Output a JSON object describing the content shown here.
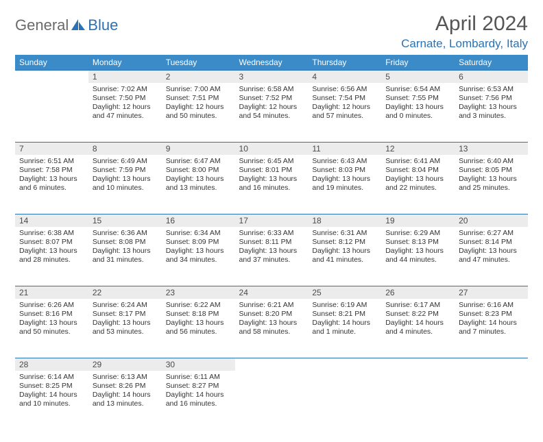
{
  "logo": {
    "part1": "General",
    "part2": "Blue"
  },
  "title": "April 2024",
  "subtitle": "Carnate, Lombardy, Italy",
  "colors": {
    "header_bg": "#3b8bc9",
    "accent": "#2a72b5",
    "daynum_bg": "#ececec",
    "text": "#333333",
    "title_color": "#555555"
  },
  "day_headers": [
    "Sunday",
    "Monday",
    "Tuesday",
    "Wednesday",
    "Thursday",
    "Friday",
    "Saturday"
  ],
  "weeks": [
    {
      "nums": [
        "",
        "1",
        "2",
        "3",
        "4",
        "5",
        "6"
      ],
      "cells": [
        null,
        {
          "sr": "Sunrise: 7:02 AM",
          "ss": "Sunset: 7:50 PM",
          "dl": "Daylight: 12 hours and 47 minutes."
        },
        {
          "sr": "Sunrise: 7:00 AM",
          "ss": "Sunset: 7:51 PM",
          "dl": "Daylight: 12 hours and 50 minutes."
        },
        {
          "sr": "Sunrise: 6:58 AM",
          "ss": "Sunset: 7:52 PM",
          "dl": "Daylight: 12 hours and 54 minutes."
        },
        {
          "sr": "Sunrise: 6:56 AM",
          "ss": "Sunset: 7:54 PM",
          "dl": "Daylight: 12 hours and 57 minutes."
        },
        {
          "sr": "Sunrise: 6:54 AM",
          "ss": "Sunset: 7:55 PM",
          "dl": "Daylight: 13 hours and 0 minutes."
        },
        {
          "sr": "Sunrise: 6:53 AM",
          "ss": "Sunset: 7:56 PM",
          "dl": "Daylight: 13 hours and 3 minutes."
        }
      ]
    },
    {
      "nums": [
        "7",
        "8",
        "9",
        "10",
        "11",
        "12",
        "13"
      ],
      "cells": [
        {
          "sr": "Sunrise: 6:51 AM",
          "ss": "Sunset: 7:58 PM",
          "dl": "Daylight: 13 hours and 6 minutes."
        },
        {
          "sr": "Sunrise: 6:49 AM",
          "ss": "Sunset: 7:59 PM",
          "dl": "Daylight: 13 hours and 10 minutes."
        },
        {
          "sr": "Sunrise: 6:47 AM",
          "ss": "Sunset: 8:00 PM",
          "dl": "Daylight: 13 hours and 13 minutes."
        },
        {
          "sr": "Sunrise: 6:45 AM",
          "ss": "Sunset: 8:01 PM",
          "dl": "Daylight: 13 hours and 16 minutes."
        },
        {
          "sr": "Sunrise: 6:43 AM",
          "ss": "Sunset: 8:03 PM",
          "dl": "Daylight: 13 hours and 19 minutes."
        },
        {
          "sr": "Sunrise: 6:41 AM",
          "ss": "Sunset: 8:04 PM",
          "dl": "Daylight: 13 hours and 22 minutes."
        },
        {
          "sr": "Sunrise: 6:40 AM",
          "ss": "Sunset: 8:05 PM",
          "dl": "Daylight: 13 hours and 25 minutes."
        }
      ]
    },
    {
      "nums": [
        "14",
        "15",
        "16",
        "17",
        "18",
        "19",
        "20"
      ],
      "cells": [
        {
          "sr": "Sunrise: 6:38 AM",
          "ss": "Sunset: 8:07 PM",
          "dl": "Daylight: 13 hours and 28 minutes."
        },
        {
          "sr": "Sunrise: 6:36 AM",
          "ss": "Sunset: 8:08 PM",
          "dl": "Daylight: 13 hours and 31 minutes."
        },
        {
          "sr": "Sunrise: 6:34 AM",
          "ss": "Sunset: 8:09 PM",
          "dl": "Daylight: 13 hours and 34 minutes."
        },
        {
          "sr": "Sunrise: 6:33 AM",
          "ss": "Sunset: 8:11 PM",
          "dl": "Daylight: 13 hours and 37 minutes."
        },
        {
          "sr": "Sunrise: 6:31 AM",
          "ss": "Sunset: 8:12 PM",
          "dl": "Daylight: 13 hours and 41 minutes."
        },
        {
          "sr": "Sunrise: 6:29 AM",
          "ss": "Sunset: 8:13 PM",
          "dl": "Daylight: 13 hours and 44 minutes."
        },
        {
          "sr": "Sunrise: 6:27 AM",
          "ss": "Sunset: 8:14 PM",
          "dl": "Daylight: 13 hours and 47 minutes."
        }
      ]
    },
    {
      "nums": [
        "21",
        "22",
        "23",
        "24",
        "25",
        "26",
        "27"
      ],
      "cells": [
        {
          "sr": "Sunrise: 6:26 AM",
          "ss": "Sunset: 8:16 PM",
          "dl": "Daylight: 13 hours and 50 minutes."
        },
        {
          "sr": "Sunrise: 6:24 AM",
          "ss": "Sunset: 8:17 PM",
          "dl": "Daylight: 13 hours and 53 minutes."
        },
        {
          "sr": "Sunrise: 6:22 AM",
          "ss": "Sunset: 8:18 PM",
          "dl": "Daylight: 13 hours and 56 minutes."
        },
        {
          "sr": "Sunrise: 6:21 AM",
          "ss": "Sunset: 8:20 PM",
          "dl": "Daylight: 13 hours and 58 minutes."
        },
        {
          "sr": "Sunrise: 6:19 AM",
          "ss": "Sunset: 8:21 PM",
          "dl": "Daylight: 14 hours and 1 minute."
        },
        {
          "sr": "Sunrise: 6:17 AM",
          "ss": "Sunset: 8:22 PM",
          "dl": "Daylight: 14 hours and 4 minutes."
        },
        {
          "sr": "Sunrise: 6:16 AM",
          "ss": "Sunset: 8:23 PM",
          "dl": "Daylight: 14 hours and 7 minutes."
        }
      ]
    },
    {
      "nums": [
        "28",
        "29",
        "30",
        "",
        "",
        "",
        ""
      ],
      "cells": [
        {
          "sr": "Sunrise: 6:14 AM",
          "ss": "Sunset: 8:25 PM",
          "dl": "Daylight: 14 hours and 10 minutes."
        },
        {
          "sr": "Sunrise: 6:13 AM",
          "ss": "Sunset: 8:26 PM",
          "dl": "Daylight: 14 hours and 13 minutes."
        },
        {
          "sr": "Sunrise: 6:11 AM",
          "ss": "Sunset: 8:27 PM",
          "dl": "Daylight: 14 hours and 16 minutes."
        },
        null,
        null,
        null,
        null
      ]
    }
  ]
}
